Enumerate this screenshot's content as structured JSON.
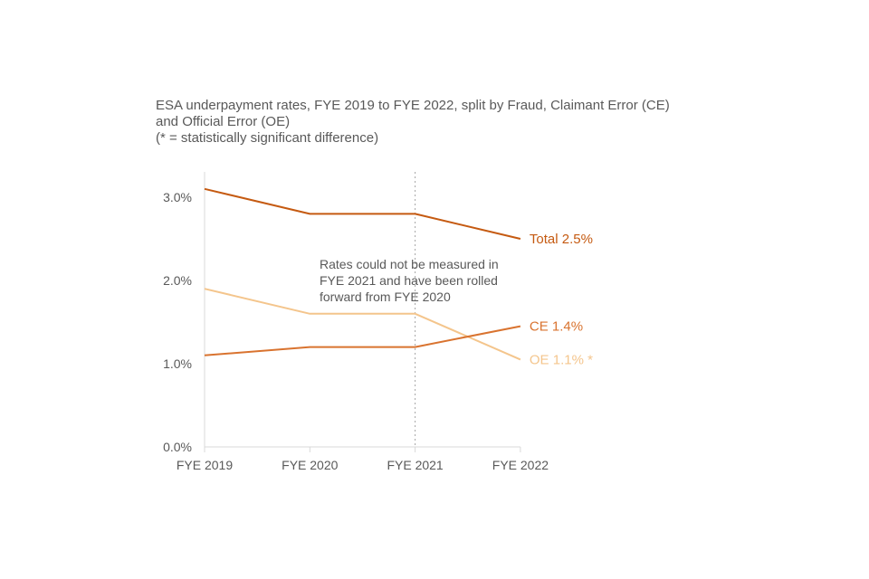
{
  "title_lines": [
    "ESA underpayment rates, FYE 2019 to FYE 2022, split by Fraud, Claimant Error (CE)",
    "and Official Error (OE)",
    "(* = statistically significant difference)"
  ],
  "colors": {
    "total": "#C55A11",
    "ce": "#D9732F",
    "oe": "#F4C58C",
    "text": "#595959",
    "axis": "#D9D9D9",
    "marker_line": "#A6A6A6"
  },
  "chart_data": {
    "type": "line",
    "categories": [
      "FYE 2019",
      "FYE 2020",
      "FYE 2021",
      "FYE 2022"
    ],
    "ylim": [
      0,
      3.3
    ],
    "yticks": [
      0,
      1,
      2,
      3
    ],
    "ytick_labels": [
      "0.0%",
      "1.0%",
      "2.0%",
      "3.0%"
    ],
    "grid": false,
    "series": [
      {
        "key": "total",
        "label": "Total 2.5%",
        "values": [
          3.1,
          2.8,
          2.8,
          2.5
        ]
      },
      {
        "key": "ce",
        "label": "CE 1.4%",
        "values": [
          1.1,
          1.2,
          1.2,
          1.45
        ]
      },
      {
        "key": "oe",
        "label": "OE 1.1% *",
        "values": [
          1.9,
          1.6,
          1.6,
          1.05
        ]
      }
    ],
    "marker_category": "FYE 2021",
    "annotation": [
      "Rates could not be measured in",
      "FYE 2021 and have been rolled",
      "forward from FYE 2020"
    ]
  }
}
